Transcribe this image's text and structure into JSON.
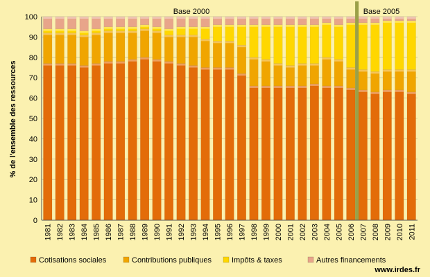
{
  "chart_data": {
    "type": "bar",
    "stacked": true,
    "ylabel": "% de l'ensemble des ressources",
    "ylim": [
      0,
      100
    ],
    "yticks": [
      0,
      10,
      20,
      30,
      40,
      50,
      60,
      70,
      80,
      90,
      100
    ],
    "grid": true,
    "legend_position": "bottom",
    "categories": [
      "1981",
      "1982",
      "1983",
      "1984",
      "1985",
      "1986",
      "1987",
      "1988",
      "1989",
      "1990",
      "1991",
      "1992",
      "1993",
      "1994",
      "1995",
      "1996",
      "1997",
      "1998",
      "1999",
      "2000",
      "2001",
      "2002",
      "2003",
      "2004",
      "2005",
      "2006",
      "2007",
      "2008",
      "2009",
      "2010",
      "2011"
    ],
    "series": [
      {
        "name": "Cotisations sociales",
        "color": "#e36c09",
        "values": [
          77,
          77,
          77,
          76,
          77,
          78,
          78,
          79,
          80,
          79,
          78,
          77,
          76,
          75,
          75,
          75,
          72,
          66,
          66,
          66,
          66,
          66,
          67,
          66,
          66,
          65,
          64,
          63,
          64,
          64,
          63
        ]
      },
      {
        "name": "Contributions publiques",
        "color": "#f0a500",
        "values": [
          15,
          15,
          15,
          15,
          15,
          15,
          15,
          14,
          14,
          14,
          13,
          14,
          15,
          14,
          13,
          13,
          14,
          14,
          13,
          11,
          10,
          11,
          10,
          14,
          13,
          10,
          10,
          10,
          10,
          10,
          11
        ]
      },
      {
        "name": "Impôts & taxes",
        "color": "#ffd700",
        "values": [
          2,
          2,
          2,
          2,
          2,
          2,
          2,
          2,
          2,
          2,
          3,
          4,
          4,
          6,
          8,
          8,
          10,
          16,
          17,
          19,
          20,
          19,
          19,
          17,
          17,
          22,
          23,
          24,
          24,
          24,
          24
        ]
      },
      {
        "name": "Autres financements",
        "color": "#e8a58a",
        "values": [
          6,
          6,
          6,
          7,
          6,
          5,
          5,
          5,
          4,
          5,
          6,
          5,
          5,
          5,
          4,
          4,
          4,
          4,
          4,
          4,
          4,
          4,
          4,
          3,
          4,
          3,
          3,
          3,
          2,
          2,
          2
        ]
      }
    ],
    "annotations": [
      {
        "text": "Base 2000"
      },
      {
        "text": "Base 2005"
      }
    ],
    "base_change_after": "2006",
    "base_change_color": "#9aa048"
  },
  "source": "www.irdes.fr"
}
